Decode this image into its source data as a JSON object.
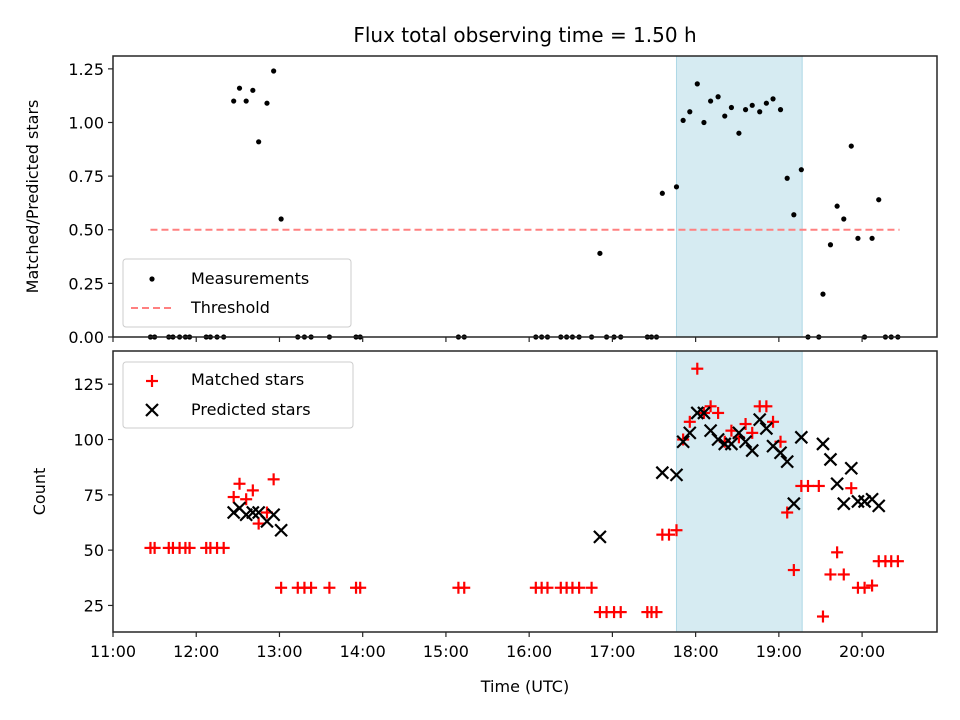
{
  "chart_data": [
    {
      "id": "ratio",
      "type": "scatter",
      "title": "Flux total observing time = 1.50 h",
      "xlabel": "",
      "ylabel": "Matched/Predicted stars",
      "xlim": [
        11.0,
        20.9
      ],
      "ylim": [
        0.0,
        1.31
      ],
      "yticks": [
        0.0,
        0.25,
        0.5,
        0.75,
        1.0,
        1.25
      ],
      "ytick_labels": [
        "0.00",
        "0.25",
        "0.50",
        "0.75",
        "1.00",
        "1.25"
      ],
      "grid": false,
      "legend": {
        "position": "lower-left",
        "entries": [
          "Measurements",
          "Threshold"
        ]
      },
      "shaded_span": {
        "x_start": 17.77,
        "x_end": 19.28,
        "color": "#add8e6"
      },
      "series": [
        {
          "name": "Measurements",
          "marker": "dot",
          "color": "#000000",
          "points": [
            [
              11.45,
              0
            ],
            [
              11.5,
              0
            ],
            [
              11.67,
              0
            ],
            [
              11.72,
              0
            ],
            [
              11.8,
              0
            ],
            [
              11.87,
              0
            ],
            [
              11.92,
              0
            ],
            [
              12.12,
              0
            ],
            [
              12.17,
              0
            ],
            [
              12.25,
              0
            ],
            [
              12.33,
              0
            ],
            [
              12.45,
              1.1
            ],
            [
              12.52,
              1.16
            ],
            [
              12.6,
              1.1
            ],
            [
              12.68,
              1.15
            ],
            [
              12.75,
              0.91
            ],
            [
              12.85,
              1.09
            ],
            [
              12.93,
              1.24
            ],
            [
              13.02,
              0.55
            ],
            [
              13.22,
              0
            ],
            [
              13.3,
              0
            ],
            [
              13.38,
              0
            ],
            [
              13.6,
              0
            ],
            [
              13.92,
              0
            ],
            [
              13.97,
              0
            ],
            [
              15.15,
              0
            ],
            [
              15.22,
              0
            ],
            [
              16.08,
              0
            ],
            [
              16.15,
              0
            ],
            [
              16.22,
              0
            ],
            [
              16.38,
              0
            ],
            [
              16.45,
              0
            ],
            [
              16.52,
              0
            ],
            [
              16.6,
              0
            ],
            [
              16.75,
              0
            ],
            [
              16.85,
              0.39
            ],
            [
              16.93,
              0
            ],
            [
              17.02,
              0
            ],
            [
              17.1,
              0
            ],
            [
              17.42,
              0
            ],
            [
              17.47,
              0
            ],
            [
              17.53,
              0
            ],
            [
              17.6,
              0.67
            ],
            [
              17.77,
              0.7
            ],
            [
              17.85,
              1.01
            ],
            [
              17.93,
              1.05
            ],
            [
              18.02,
              1.18
            ],
            [
              18.1,
              1.0
            ],
            [
              18.18,
              1.1
            ],
            [
              18.27,
              1.12
            ],
            [
              18.35,
              1.03
            ],
            [
              18.43,
              1.07
            ],
            [
              18.52,
              0.95
            ],
            [
              18.6,
              1.06
            ],
            [
              18.68,
              1.08
            ],
            [
              18.77,
              1.05
            ],
            [
              18.85,
              1.09
            ],
            [
              18.93,
              1.11
            ],
            [
              19.02,
              1.06
            ],
            [
              19.1,
              0.74
            ],
            [
              19.18,
              0.57
            ],
            [
              19.27,
              0.78
            ],
            [
              19.35,
              0
            ],
            [
              19.48,
              0
            ],
            [
              19.53,
              0.2
            ],
            [
              19.62,
              0.43
            ],
            [
              19.7,
              0.61
            ],
            [
              19.78,
              0.55
            ],
            [
              19.87,
              0.89
            ],
            [
              19.95,
              0.46
            ],
            [
              20.03,
              0
            ],
            [
              20.12,
              0.46
            ],
            [
              20.2,
              0.64
            ],
            [
              20.28,
              0
            ],
            [
              20.35,
              0
            ],
            [
              20.43,
              0
            ]
          ]
        },
        {
          "name": "Threshold",
          "marker": "dashed-line",
          "color": "#ff8080",
          "points": [
            [
              11.45,
              0.5
            ],
            [
              20.45,
              0.5
            ]
          ]
        }
      ]
    },
    {
      "id": "counts",
      "type": "scatter",
      "title": "",
      "xlabel": "Time (UTC)",
      "ylabel": "Count",
      "xlim": [
        11.0,
        20.9
      ],
      "ylim": [
        13,
        140
      ],
      "yticks": [
        25,
        50,
        75,
        100,
        125
      ],
      "ytick_labels": [
        "25",
        "50",
        "75",
        "100",
        "125"
      ],
      "xticks": [
        11,
        12,
        13,
        14,
        15,
        16,
        17,
        18,
        19,
        20
      ],
      "xtick_labels": [
        "11:00",
        "12:00",
        "13:00",
        "14:00",
        "15:00",
        "16:00",
        "17:00",
        "18:00",
        "19:00",
        "20:00"
      ],
      "grid": false,
      "legend": {
        "position": "upper-left",
        "entries": [
          "Matched stars",
          "Predicted stars"
        ]
      },
      "shaded_span": {
        "x_start": 17.77,
        "x_end": 19.28,
        "color": "#add8e6"
      },
      "series": [
        {
          "name": "Matched stars",
          "marker": "plus",
          "color": "#ff0000",
          "points": [
            [
              11.45,
              51
            ],
            [
              11.5,
              51
            ],
            [
              11.67,
              51
            ],
            [
              11.72,
              51
            ],
            [
              11.8,
              51
            ],
            [
              11.87,
              51
            ],
            [
              11.92,
              51
            ],
            [
              12.12,
              51
            ],
            [
              12.17,
              51
            ],
            [
              12.25,
              51
            ],
            [
              12.33,
              51
            ],
            [
              12.45,
              74
            ],
            [
              12.52,
              80
            ],
            [
              12.6,
              73
            ],
            [
              12.68,
              77
            ],
            [
              12.75,
              62
            ],
            [
              12.85,
              67
            ],
            [
              12.93,
              82
            ],
            [
              13.02,
              33
            ],
            [
              13.22,
              33
            ],
            [
              13.3,
              33
            ],
            [
              13.38,
              33
            ],
            [
              13.6,
              33
            ],
            [
              13.92,
              33
            ],
            [
              13.97,
              33
            ],
            [
              15.15,
              33
            ],
            [
              15.22,
              33
            ],
            [
              16.08,
              33
            ],
            [
              16.15,
              33
            ],
            [
              16.22,
              33
            ],
            [
              16.38,
              33
            ],
            [
              16.45,
              33
            ],
            [
              16.52,
              33
            ],
            [
              16.6,
              33
            ],
            [
              16.75,
              33
            ],
            [
              16.85,
              22
            ],
            [
              16.93,
              22
            ],
            [
              17.02,
              22
            ],
            [
              17.1,
              22
            ],
            [
              17.42,
              22
            ],
            [
              17.47,
              22
            ],
            [
              17.53,
              22
            ],
            [
              17.6,
              57
            ],
            [
              17.68,
              57
            ],
            [
              17.77,
              59
            ],
            [
              17.85,
              100
            ],
            [
              17.93,
              108
            ],
            [
              18.02,
              132
            ],
            [
              18.1,
              112
            ],
            [
              18.18,
              115
            ],
            [
              18.27,
              112
            ],
            [
              18.35,
              99
            ],
            [
              18.43,
              104
            ],
            [
              18.52,
              101
            ],
            [
              18.6,
              107
            ],
            [
              18.68,
              103
            ],
            [
              18.77,
              115
            ],
            [
              18.85,
              115
            ],
            [
              18.93,
              108
            ],
            [
              19.02,
              99
            ],
            [
              19.1,
              67
            ],
            [
              19.18,
              41
            ],
            [
              19.27,
              79
            ],
            [
              19.35,
              79
            ],
            [
              19.48,
              79
            ],
            [
              19.53,
              20
            ],
            [
              19.62,
              39
            ],
            [
              19.7,
              49
            ],
            [
              19.78,
              39
            ],
            [
              19.87,
              78
            ],
            [
              19.95,
              33
            ],
            [
              20.03,
              33
            ],
            [
              20.12,
              34
            ],
            [
              20.2,
              45
            ],
            [
              20.28,
              45
            ],
            [
              20.35,
              45
            ],
            [
              20.43,
              45
            ]
          ]
        },
        {
          "name": "Predicted stars",
          "marker": "x",
          "color": "#000000",
          "points": [
            [
              12.45,
              67
            ],
            [
              12.52,
              69
            ],
            [
              12.6,
              66
            ],
            [
              12.68,
              67
            ],
            [
              12.75,
              67
            ],
            [
              12.85,
              63
            ],
            [
              12.93,
              66
            ],
            [
              13.02,
              59
            ],
            [
              16.85,
              56
            ],
            [
              17.6,
              85
            ],
            [
              17.77,
              84
            ],
            [
              17.85,
              99
            ],
            [
              17.93,
              103
            ],
            [
              18.02,
              112
            ],
            [
              18.1,
              112
            ],
            [
              18.18,
              104
            ],
            [
              18.27,
              100
            ],
            [
              18.35,
              98
            ],
            [
              18.43,
              98
            ],
            [
              18.52,
              103
            ],
            [
              18.6,
              99
            ],
            [
              18.68,
              95
            ],
            [
              18.77,
              109
            ],
            [
              18.85,
              105
            ],
            [
              18.93,
              97
            ],
            [
              19.02,
              94
            ],
            [
              19.1,
              90
            ],
            [
              19.18,
              71
            ],
            [
              19.27,
              101
            ],
            [
              19.53,
              98
            ],
            [
              19.62,
              91
            ],
            [
              19.7,
              80
            ],
            [
              19.78,
              71
            ],
            [
              19.87,
              87
            ],
            [
              19.95,
              72
            ],
            [
              20.03,
              72
            ],
            [
              20.12,
              73
            ],
            [
              20.2,
              70
            ]
          ]
        }
      ]
    }
  ]
}
